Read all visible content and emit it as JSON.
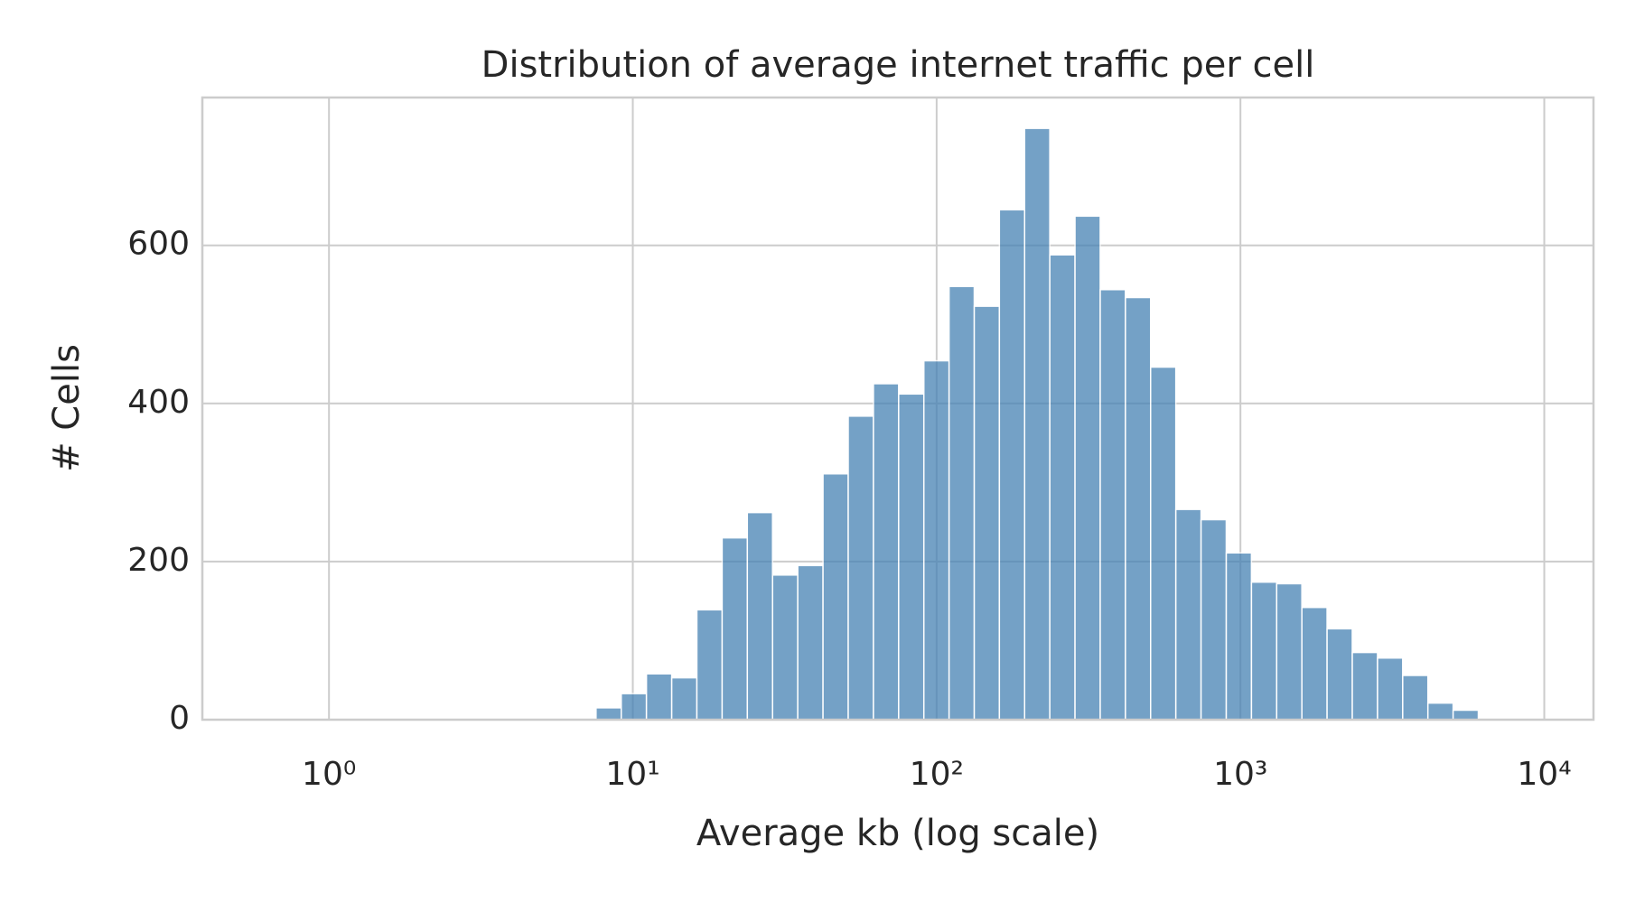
{
  "chart_data": {
    "type": "histogram",
    "title": "Distribution of average internet traffic per cell",
    "xlabel": "Average kb (log scale)",
    "ylabel": "# Cells",
    "xscale": "log",
    "grid": true,
    "color": "#4682b4",
    "bins": [
      7.568,
      9.162,
      11.09,
      13.43,
      16.25,
      19.68,
      23.82,
      28.84,
      34.91,
      42.27,
      51.17,
      61.94,
      74.99,
      90.78,
      109.9,
      133.0,
      160.9,
      194.8,
      235.8,
      285.4,
      345.5,
      418.2,
      506.2,
      612.8,
      741.9,
      898.1,
      1087,
      1316,
      1593,
      1928,
      2334,
      2826,
      3420,
      4140,
      5012,
      6067
    ],
    "values": [
      15,
      33,
      58,
      53,
      139,
      230,
      262,
      183,
      195,
      311,
      384,
      425,
      412,
      454,
      548,
      523,
      645,
      748,
      588,
      637,
      544,
      534,
      446,
      266,
      253,
      211,
      174,
      172,
      142,
      115,
      85,
      78,
      56,
      21,
      12
    ],
    "xlim": [
      0.383,
      14520
    ],
    "ylim": [
      0,
      787
    ],
    "xticks": [
      {
        "value": 1,
        "label": "10⁰"
      },
      {
        "value": 10,
        "label": "10¹"
      },
      {
        "value": 100,
        "label": "10²"
      },
      {
        "value": 1000,
        "label": "10³"
      },
      {
        "value": 10000,
        "label": "10⁴"
      }
    ],
    "yticks": [
      0,
      200,
      400,
      600
    ]
  }
}
